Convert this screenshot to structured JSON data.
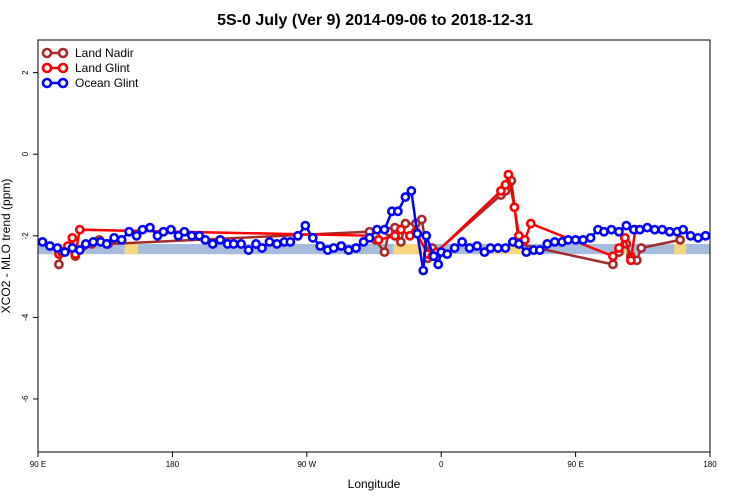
{
  "chart_data": {
    "type": "line",
    "title": "5S-0 July (Ver 9)   2014-09-06 to 2018-12-31",
    "xlabel": "Longitude",
    "ylabel": "XCO2 - MLO trend (ppm)",
    "xlim": [
      90,
      540
    ],
    "ylim": [
      -7.3,
      2.8
    ],
    "x_ticks": [
      {
        "value": 90,
        "label": "90 E"
      },
      {
        "value": 180,
        "label": "180"
      },
      {
        "value": 270,
        "label": "90 W"
      },
      {
        "value": 360,
        "label": "0"
      },
      {
        "value": 450,
        "label": "90 E"
      },
      {
        "value": 540,
        "label": "180"
      }
    ],
    "y_ticks": [
      {
        "value": 2,
        "label": "2"
      },
      {
        "value": 0,
        "label": "0"
      },
      {
        "value": -2,
        "label": "-2"
      },
      {
        "value": -4,
        "label": "-4"
      },
      {
        "value": -6,
        "label": "-6"
      }
    ],
    "legend_position": "top-left",
    "series": [
      {
        "name": "Land Nadir",
        "color": "#a52a2a",
        "points": [
          [
            104,
            -2.7
          ],
          [
            106,
            -2.4
          ],
          [
            110,
            -2.3
          ],
          [
            115,
            -2.5
          ],
          [
            126,
            -2.2
          ],
          [
            131,
            -2.1
          ],
          [
            137,
            -2.2
          ],
          [
            312,
            -1.9
          ],
          [
            316,
            -2.1
          ],
          [
            322,
            -2.4
          ],
          [
            325,
            -1.9
          ],
          [
            329,
            -1.8
          ],
          [
            333,
            -2.15
          ],
          [
            336,
            -1.7
          ],
          [
            343,
            -1.7
          ],
          [
            347,
            -1.6
          ],
          [
            351,
            -2.55
          ],
          [
            354,
            -2.3
          ],
          [
            355,
            -2.45
          ],
          [
            400,
            -1.0
          ],
          [
            403,
            -0.9
          ],
          [
            407,
            -0.65
          ],
          [
            412,
            -2.2
          ],
          [
            475,
            -2.7
          ],
          [
            479,
            -2.4
          ],
          [
            484,
            -2.2
          ],
          [
            487,
            -2.5
          ],
          [
            491,
            -2.6
          ],
          [
            494,
            -2.3
          ],
          [
            520,
            -2.1
          ]
        ]
      },
      {
        "name": "Land Glint",
        "color": "#ff0000",
        "points": [
          [
            104,
            -2.45
          ],
          [
            106,
            -2.4
          ],
          [
            110,
            -2.25
          ],
          [
            113,
            -2.05
          ],
          [
            115,
            -2.45
          ],
          [
            118,
            -1.85
          ],
          [
            316,
            -2.0
          ],
          [
            318,
            -2.1
          ],
          [
            329,
            -2.0
          ],
          [
            333,
            -1.85
          ],
          [
            339,
            -2.0
          ],
          [
            343,
            -1.9
          ],
          [
            351,
            -2.45
          ],
          [
            354,
            -2.5
          ],
          [
            357,
            -2.4
          ],
          [
            400,
            -0.9
          ],
          [
            403,
            -0.75
          ],
          [
            405,
            -0.5
          ],
          [
            409,
            -1.3
          ],
          [
            412,
            -2.0
          ],
          [
            416,
            -2.1
          ],
          [
            420,
            -1.7
          ],
          [
            475,
            -2.5
          ],
          [
            479,
            -2.3
          ],
          [
            483,
            -2.05
          ],
          [
            487,
            -2.6
          ],
          [
            490,
            -1.85
          ]
        ]
      },
      {
        "name": "Ocean Glint",
        "color": "#0000ff",
        "points": [
          [
            93,
            -2.15
          ],
          [
            98,
            -2.25
          ],
          [
            103,
            -2.3
          ],
          [
            108,
            -2.4
          ],
          [
            113,
            -2.3
          ],
          [
            118,
            -2.35
          ],
          [
            122,
            -2.2
          ],
          [
            127,
            -2.15
          ],
          [
            132,
            -2.15
          ],
          [
            136,
            -2.2
          ],
          [
            141,
            -2.05
          ],
          [
            146,
            -2.1
          ],
          [
            151,
            -1.9
          ],
          [
            156,
            -2.0
          ],
          [
            160,
            -1.85
          ],
          [
            165,
            -1.8
          ],
          [
            170,
            -2.0
          ],
          [
            174,
            -1.9
          ],
          [
            179,
            -1.85
          ],
          [
            184,
            -2.0
          ],
          [
            188,
            -1.9
          ],
          [
            193,
            -2.0
          ],
          [
            198,
            -2.0
          ],
          [
            202,
            -2.1
          ],
          [
            207,
            -2.2
          ],
          [
            212,
            -2.1
          ],
          [
            217,
            -2.2
          ],
          [
            221,
            -2.2
          ],
          [
            226,
            -2.2
          ],
          [
            231,
            -2.35
          ],
          [
            236,
            -2.2
          ],
          [
            240,
            -2.3
          ],
          [
            245,
            -2.15
          ],
          [
            250,
            -2.2
          ],
          [
            255,
            -2.15
          ],
          [
            259,
            -2.15
          ],
          [
            264,
            -2.0
          ],
          [
            269,
            -1.75
          ],
          [
            274,
            -2.05
          ],
          [
            279,
            -2.25
          ],
          [
            284,
            -2.35
          ],
          [
            288,
            -2.3
          ],
          [
            293,
            -2.25
          ],
          [
            298,
            -2.35
          ],
          [
            303,
            -2.3
          ],
          [
            308,
            -2.15
          ],
          [
            312,
            -2.05
          ],
          [
            317,
            -1.85
          ],
          [
            322,
            -1.85
          ],
          [
            327,
            -1.4
          ],
          [
            331,
            -1.4
          ],
          [
            336,
            -1.05
          ],
          [
            340,
            -0.9
          ],
          [
            344,
            -1.95
          ],
          [
            348,
            -2.85
          ],
          [
            350,
            -2.0
          ],
          [
            355,
            -2.5
          ],
          [
            358,
            -2.7
          ],
          [
            360,
            -2.4
          ],
          [
            364,
            -2.45
          ],
          [
            369,
            -2.3
          ],
          [
            374,
            -2.15
          ],
          [
            379,
            -2.3
          ],
          [
            384,
            -2.25
          ],
          [
            389,
            -2.4
          ],
          [
            393,
            -2.3
          ],
          [
            398,
            -2.3
          ],
          [
            403,
            -2.3
          ],
          [
            408,
            -2.15
          ],
          [
            412,
            -2.2
          ],
          [
            417,
            -2.4
          ],
          [
            422,
            -2.35
          ],
          [
            426,
            -2.35
          ],
          [
            431,
            -2.2
          ],
          [
            436,
            -2.15
          ],
          [
            441,
            -2.15
          ],
          [
            445,
            -2.1
          ],
          [
            450,
            -2.1
          ],
          [
            455,
            -2.1
          ],
          [
            460,
            -2.05
          ],
          [
            465,
            -1.85
          ],
          [
            469,
            -1.9
          ],
          [
            474,
            -1.85
          ],
          [
            479,
            -1.9
          ],
          [
            484,
            -1.75
          ],
          [
            489,
            -1.85
          ],
          [
            493,
            -1.85
          ],
          [
            498,
            -1.8
          ],
          [
            503,
            -1.85
          ],
          [
            508,
            -1.85
          ],
          [
            513,
            -1.9
          ],
          [
            518,
            -1.9
          ],
          [
            522,
            -1.85
          ],
          [
            527,
            -2.0
          ],
          [
            532,
            -2.05
          ],
          [
            537,
            -2.0
          ]
        ]
      }
    ]
  }
}
